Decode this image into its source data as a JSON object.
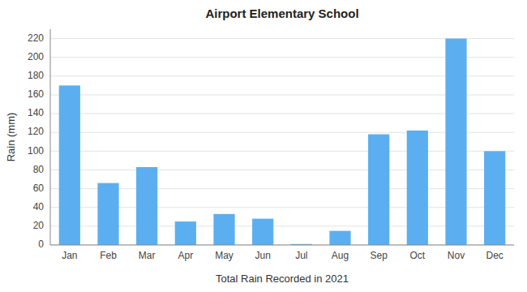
{
  "chart_data": {
    "type": "bar",
    "title": "Airport Elementary School",
    "xlabel": "Total Rain Recorded in 2021",
    "ylabel": "Rain (mm)",
    "categories": [
      "Jan",
      "Feb",
      "Mar",
      "Apr",
      "May",
      "Jun",
      "Jul",
      "Aug",
      "Sep",
      "Oct",
      "Nov",
      "Dec"
    ],
    "values": [
      170,
      66,
      83,
      25,
      33,
      28,
      1,
      15,
      118,
      122,
      220,
      100
    ],
    "color": "#5BAFF0",
    "ylim": [
      0,
      230
    ],
    "yticks": [
      0,
      20,
      40,
      60,
      80,
      100,
      120,
      140,
      160,
      180,
      200,
      220
    ],
    "grid": true
  }
}
